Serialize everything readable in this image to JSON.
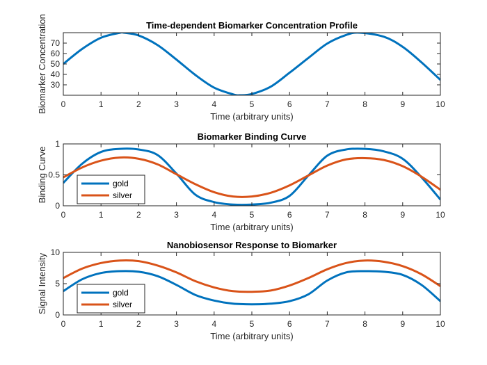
{
  "colors": {
    "gold": "#0072BD",
    "silver": "#D95319",
    "axes": "#262626",
    "background": "#ffffff"
  },
  "chart_data": [
    {
      "type": "line",
      "title": "Time-dependent Biomarker Concentration Profile",
      "xlabel": "Time (arbitrary units)",
      "ylabel": "Biomarker Concentration",
      "xlim": [
        0,
        10
      ],
      "ylim": [
        20,
        80
      ],
      "xticks": [
        0,
        1,
        2,
        3,
        4,
        5,
        6,
        7,
        8,
        9,
        10
      ],
      "yticks": [
        30,
        40,
        50,
        60,
        70
      ],
      "legend": null,
      "series": [
        {
          "color": "#0072BD",
          "x": [
            0,
            0.5,
            1,
            1.5,
            1.6,
            2,
            2.5,
            3,
            3.5,
            4,
            4.5,
            4.7,
            5,
            5.5,
            6,
            6.5,
            7,
            7.5,
            7.85,
            8.5,
            9,
            9.5,
            10
          ],
          "values": [
            50,
            64.4,
            75.2,
            79.9,
            80,
            77.3,
            68.1,
            54.2,
            39.5,
            27.3,
            20.9,
            20,
            21.2,
            28.2,
            41.6,
            55.8,
            69.6,
            77.8,
            80,
            76.1,
            66.4,
            51.5,
            34.7
          ]
        }
      ]
    },
    {
      "type": "line",
      "title": "Biomarker Binding Curve",
      "xlabel": "Time (arbitrary units)",
      "ylabel": "Binding Curve",
      "xlim": [
        0,
        10
      ],
      "ylim": [
        0,
        1
      ],
      "xticks": [
        0,
        1,
        2,
        3,
        4,
        5,
        6,
        7,
        8,
        9,
        10
      ],
      "yticks": [
        0,
        0.5,
        1
      ],
      "legend": "bottom-left",
      "series": [
        {
          "name": "gold",
          "color": "#0072BD",
          "x": [
            0,
            0.5,
            1,
            1.5,
            2,
            2.5,
            3,
            3.5,
            4,
            4.5,
            5,
            5.5,
            6,
            6.5,
            7,
            7.5,
            8,
            8.5,
            9,
            9.5,
            10
          ],
          "values": [
            0.37,
            0.68,
            0.87,
            0.92,
            0.91,
            0.82,
            0.52,
            0.18,
            0.06,
            0.02,
            0.02,
            0.05,
            0.16,
            0.49,
            0.81,
            0.91,
            0.92,
            0.88,
            0.76,
            0.46,
            0.1
          ]
        },
        {
          "name": "silver",
          "color": "#D95319",
          "x": [
            0,
            0.5,
            1,
            1.5,
            2,
            2.5,
            3,
            3.5,
            4,
            4.5,
            5,
            5.5,
            6,
            6.5,
            7,
            7.5,
            8,
            8.5,
            9,
            9.5,
            10
          ],
          "values": [
            0.46,
            0.62,
            0.73,
            0.78,
            0.76,
            0.67,
            0.51,
            0.35,
            0.22,
            0.15,
            0.15,
            0.21,
            0.33,
            0.49,
            0.65,
            0.75,
            0.77,
            0.74,
            0.64,
            0.47,
            0.26
          ]
        }
      ]
    },
    {
      "type": "line",
      "title": "Nanobiosensor Response to Biomarker",
      "xlabel": "Time (arbitrary units)",
      "ylabel": "Signal Intensity",
      "xlim": [
        0,
        10
      ],
      "ylim": [
        0,
        10
      ],
      "xticks": [
        0,
        1,
        2,
        3,
        4,
        5,
        6,
        7,
        8,
        9,
        10
      ],
      "yticks": [
        0,
        5,
        10
      ],
      "legend": "bottom-left",
      "series": [
        {
          "name": "gold",
          "color": "#0072BD",
          "x": [
            0,
            0.5,
            1,
            1.5,
            2,
            2.5,
            3,
            3.5,
            4,
            4.5,
            5,
            5.5,
            6,
            6.5,
            7,
            7.5,
            8,
            8.5,
            9,
            9.5,
            10
          ],
          "values": [
            3.8,
            5.7,
            6.7,
            7.0,
            6.9,
            6.2,
            4.8,
            3.2,
            2.3,
            1.8,
            1.7,
            1.8,
            2.2,
            3.3,
            5.5,
            6.8,
            7.0,
            6.9,
            6.4,
            4.8,
            2.2
          ]
        },
        {
          "name": "silver",
          "color": "#D95319",
          "x": [
            0,
            0.5,
            1,
            1.5,
            2,
            2.5,
            3,
            3.5,
            4,
            4.5,
            5,
            5.5,
            6,
            6.5,
            7,
            7.5,
            8,
            8.5,
            9,
            9.5,
            10
          ],
          "values": [
            5.9,
            7.4,
            8.3,
            8.7,
            8.6,
            7.9,
            6.8,
            5.4,
            4.4,
            3.8,
            3.7,
            3.9,
            4.7,
            5.9,
            7.3,
            8.3,
            8.7,
            8.5,
            7.8,
            6.5,
            4.6
          ]
        }
      ]
    }
  ]
}
